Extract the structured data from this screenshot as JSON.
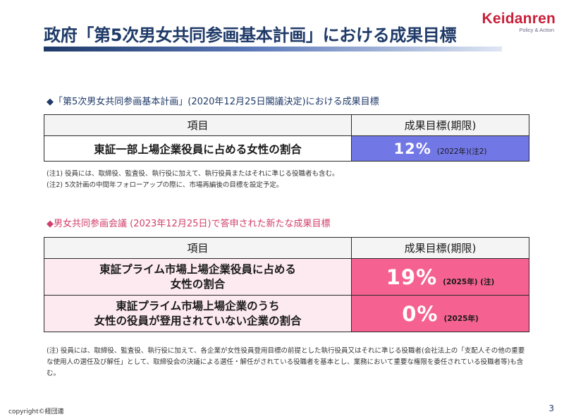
{
  "logo": {
    "main": "Keidanren",
    "sub": "Policy & Action"
  },
  "title": "政府「第5次男女共同参画基本計画」における成果目標",
  "section1": {
    "heading": "◆「第5次男女共同参画基本計画」(2020年12月25日閣議決定)における成果目標",
    "col_item": "項目",
    "col_target": "成果目標(期限)",
    "rows": [
      {
        "item": "東証一部上場企業役員に占める女性の割合",
        "value": "12%",
        "note": "(2022年)(注2)"
      }
    ],
    "notes": [
      "(注1) 役員には、取締役、監査役、執行役に加えて、執行役員またはそれに準じる役職者も含む。",
      "(注2) 5次計画の中間年フォローアップの際に、市場再編後の目標を設定予定。"
    ]
  },
  "section2": {
    "heading": "◆男女共同参画会議 (2023年12月25日)で答申された新たな成果目標",
    "col_item": "項目",
    "col_target": "成果目標(期限)",
    "rows": [
      {
        "item_line1": "東証プライム市場上場企業役員に占める",
        "item_line2": "女性の割合",
        "value": "19%",
        "note": "(2025年) (注)"
      },
      {
        "item_line1": "東証プライム市場上場企業のうち",
        "item_line2": "女性の役員が登用されていない企業の割合",
        "value": "0%",
        "note": "(2025年)"
      }
    ],
    "note": "(注) 役員には、取締役、監査役、執行役に加えて、各企業が女性役員登用目標の前提とした執行役員又はそれに準じる役職者(会社法上の「支配人その他の重要な使用人の選任及び解任」として、取締役会の決議による選任・解任がされている役職者を基本とし、業務において重要な権限を委任されている役職者等)も含む。"
  },
  "footer": {
    "copyright": "copyright©経団連",
    "page": "3"
  },
  "colors": {
    "title": "#1f3a68",
    "accent_red": "#c8203a",
    "pink": "#f56291",
    "violet": "#7277e6",
    "pink_light": "#fdeaf1"
  }
}
